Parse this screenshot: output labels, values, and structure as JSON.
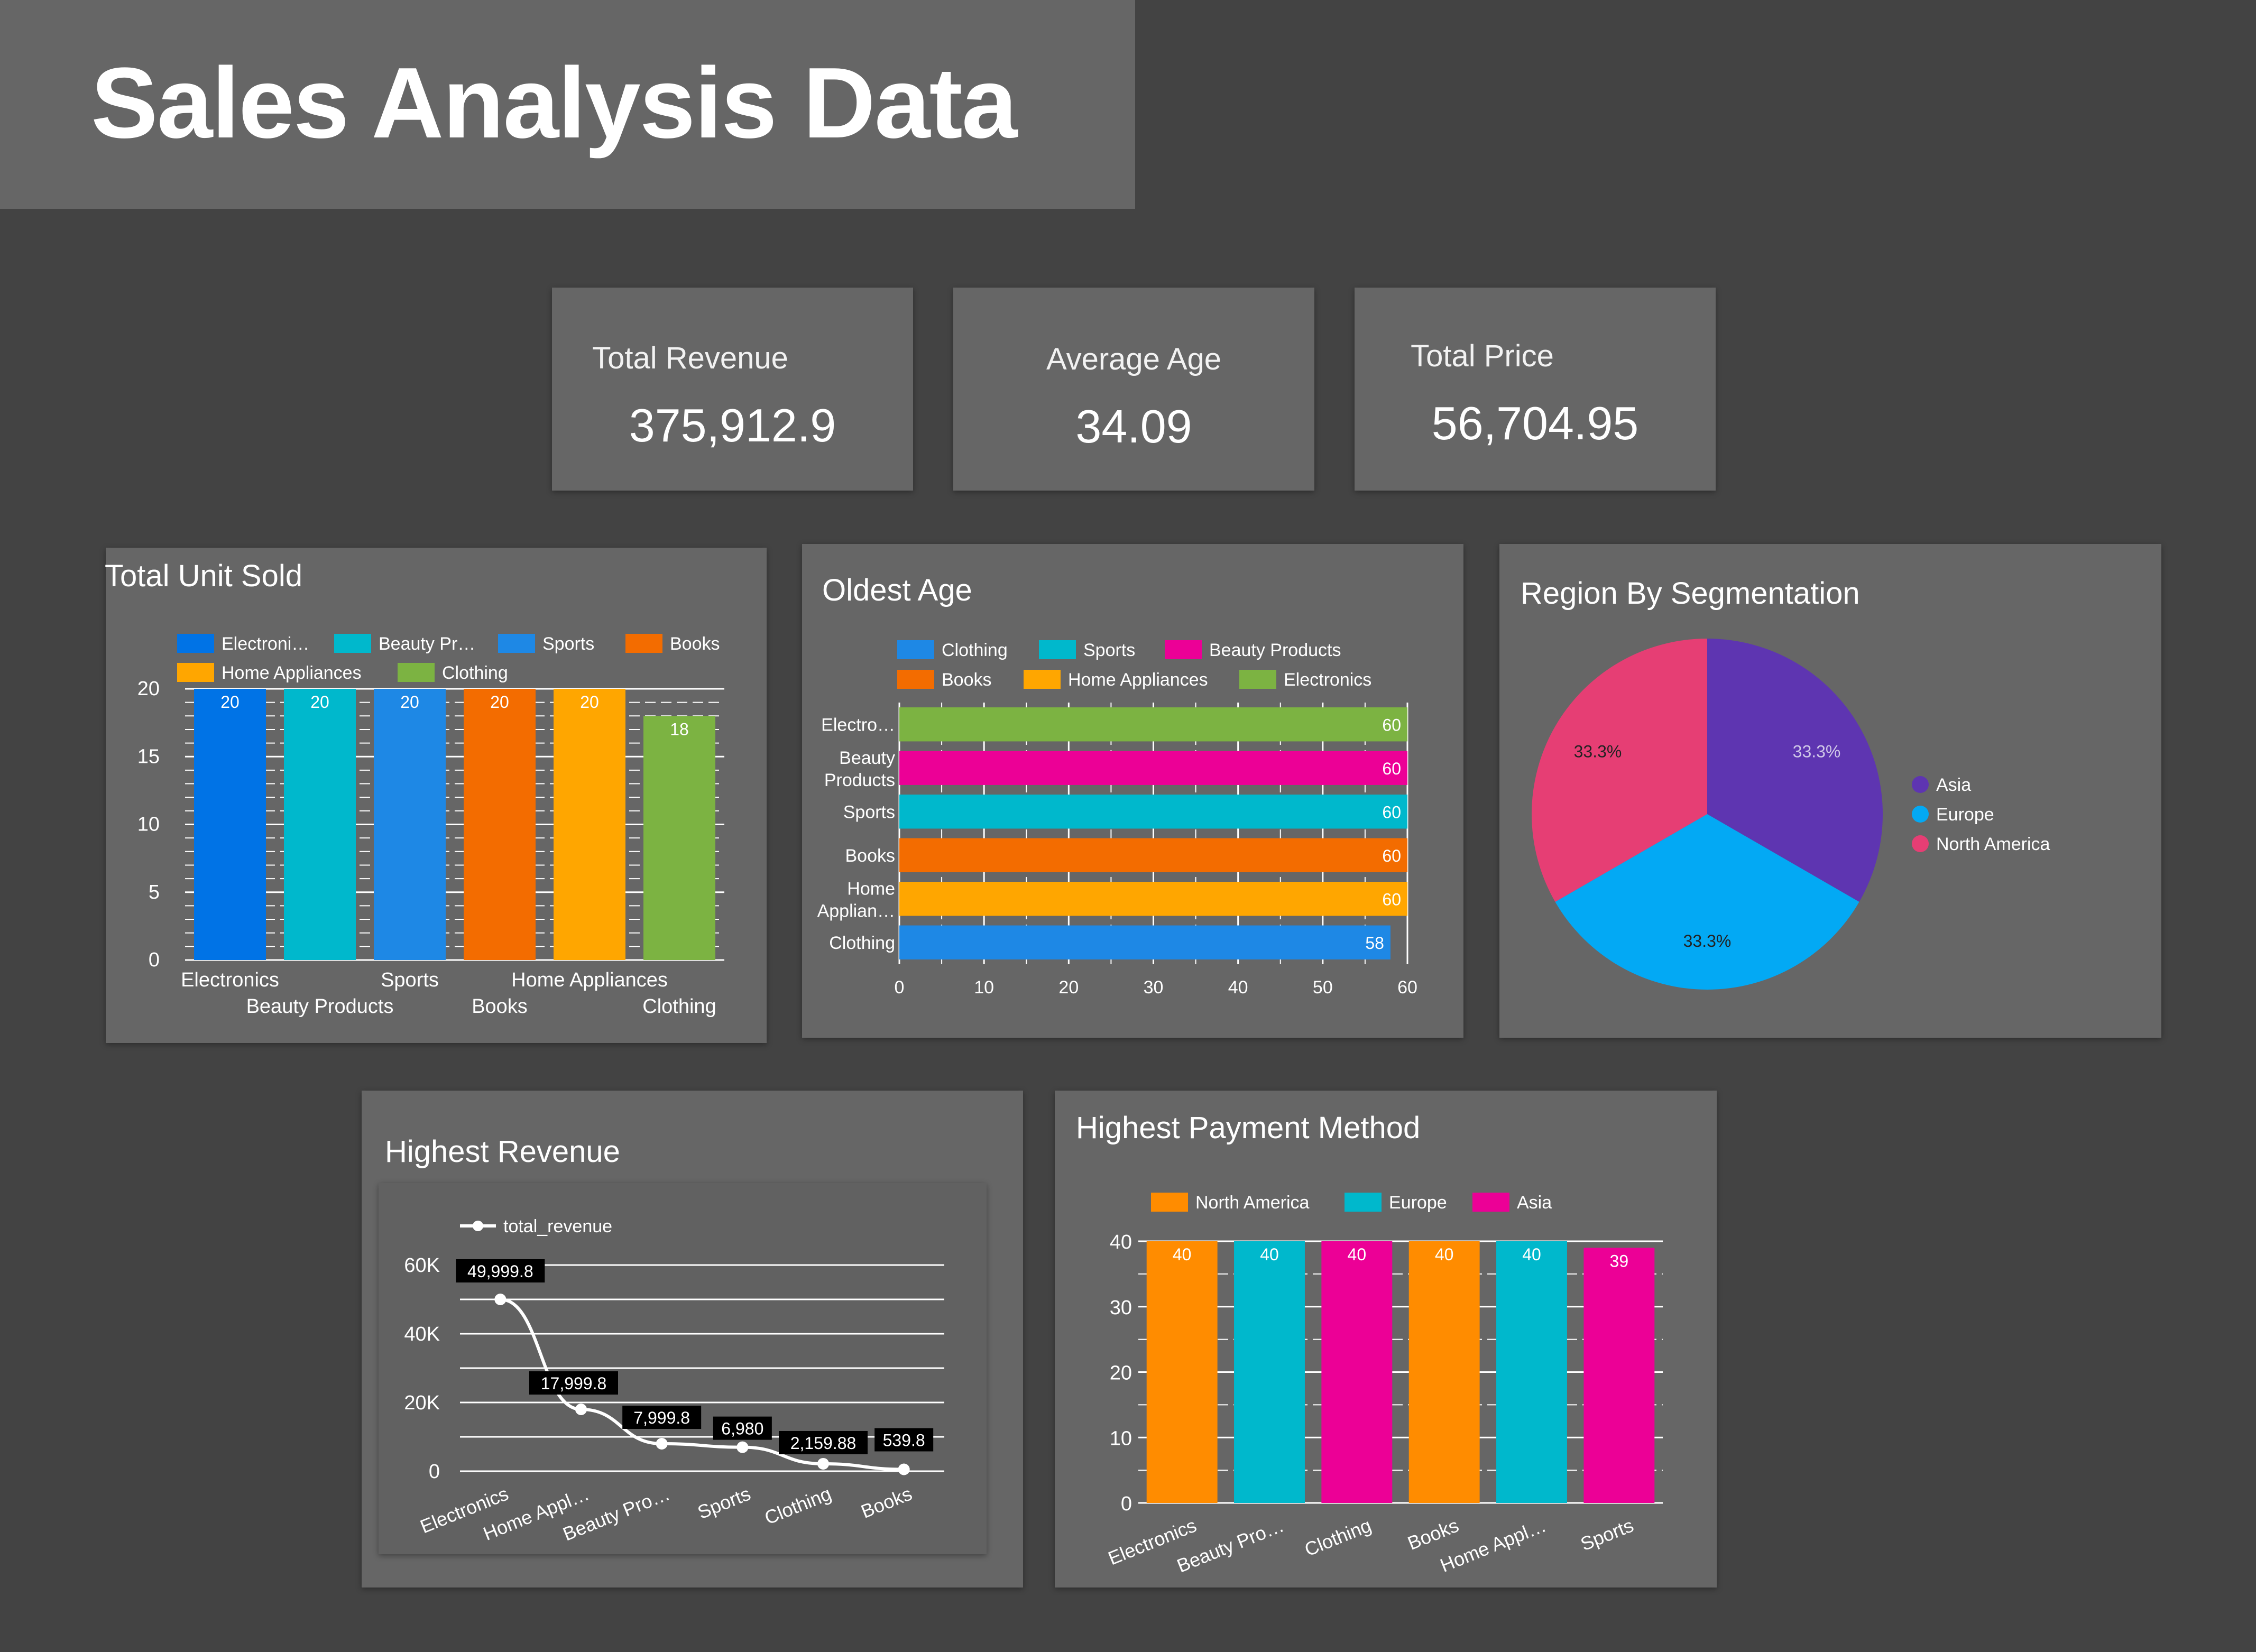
{
  "title": "Sales Analysis Data",
  "kpis": [
    {
      "label": "Total Revenue",
      "value": "375,912.9"
    },
    {
      "label": "Average Age",
      "value": "34.09"
    },
    {
      "label": "Total Price",
      "value": "56,704.95"
    }
  ],
  "colors": {
    "background": "#434343",
    "panel": "#666666",
    "electronics_blue": "#0073e6",
    "teal": "#00b8cc",
    "mid_blue": "#1e88e5",
    "orange": "#f36c00",
    "amber": "#ffa600",
    "green": "#7cb342",
    "magenta": "#ec0096",
    "purple": "#5e35b1",
    "sky": "#03a9f4",
    "pink": "#e63e74"
  },
  "chart_data": [
    {
      "id": "units",
      "type": "bar",
      "title": "Total Unit Sold",
      "categories": [
        "Electronics",
        "Beauty Products",
        "Sports",
        "Books",
        "Home Appliances",
        "Clothing"
      ],
      "values": [
        20,
        20,
        20,
        20,
        20,
        18
      ],
      "legend": [
        "Electroni…",
        "Beauty Pr…",
        "Sports",
        "Books",
        "Home Appliances",
        "Clothing"
      ],
      "colors": [
        "#0073e6",
        "#00b8cc",
        "#1e88e5",
        "#f36c00",
        "#ffa600",
        "#7cb342"
      ],
      "yticks": [
        0,
        5,
        10,
        15,
        20
      ],
      "ylim": [
        0,
        20
      ],
      "grid": true,
      "legend_position": "top"
    },
    {
      "id": "oldest",
      "type": "bar",
      "orientation": "horizontal",
      "title": "Oldest Age",
      "categories": [
        "Electronics",
        "Beauty Products",
        "Sports",
        "Books",
        "Home Appliances",
        "Clothing"
      ],
      "category_labels": [
        "Electro…",
        "Beauty Products",
        "Sports",
        "Books",
        "Home Applian…",
        "Clothing"
      ],
      "values": [
        60,
        60,
        60,
        60,
        60,
        58
      ],
      "colors": [
        "#7cb342",
        "#ec0096",
        "#00b8cc",
        "#f36c00",
        "#ffa600",
        "#1e88e5"
      ],
      "legend": [
        {
          "name": "Clothing",
          "color": "#1e88e5"
        },
        {
          "name": "Sports",
          "color": "#00b8cc"
        },
        {
          "name": "Beauty Products",
          "color": "#ec0096"
        },
        {
          "name": "Books",
          "color": "#f36c00"
        },
        {
          "name": "Home Appliances",
          "color": "#ffa600"
        },
        {
          "name": "Electronics",
          "color": "#7cb342"
        }
      ],
      "xticks": [
        0,
        10,
        20,
        30,
        40,
        50,
        60
      ],
      "xlim": [
        0,
        60
      ],
      "grid": true,
      "legend_position": "top"
    },
    {
      "id": "region",
      "type": "pie",
      "title": "Region By Segmentation",
      "labels": [
        "Asia",
        "Europe",
        "North America"
      ],
      "values": [
        33.3,
        33.3,
        33.3
      ],
      "value_labels": [
        "33.3%",
        "33.3%",
        "33.3%"
      ],
      "colors": [
        "#5e35b1",
        "#03a9f4",
        "#e63e74"
      ],
      "legend_position": "right"
    },
    {
      "id": "revenue",
      "type": "line",
      "title": "Highest Revenue",
      "series": [
        {
          "name": "total_revenue",
          "values": [
            49999.8,
            17999.8,
            7999.8,
            6980,
            2159.88,
            539.8
          ]
        }
      ],
      "categories": [
        "Electronics",
        "Home Appliances",
        "Beauty Products",
        "Sports",
        "Clothing",
        "Books"
      ],
      "category_labels": [
        "Electronics",
        "Home Appl…",
        "Beauty Pro…",
        "Sports",
        "Clothing",
        "Books"
      ],
      "value_labels": [
        "49,999.8",
        "17,999.8",
        "7,999.8",
        "6,980",
        "2,159.88",
        "539.8"
      ],
      "yticks": [
        0,
        20000,
        40000,
        60000
      ],
      "ytick_labels": [
        "0",
        "20K",
        "40K",
        "60K"
      ],
      "ylim": [
        0,
        60000
      ],
      "grid": true,
      "legend_position": "top-left"
    },
    {
      "id": "payment",
      "type": "bar",
      "title": "Highest Payment Method",
      "categories": [
        "Electronics",
        "Beauty Products",
        "Clothing",
        "Books",
        "Home Appliances",
        "Sports"
      ],
      "category_labels": [
        "Electronics",
        "Beauty Pro…",
        "Clothing",
        "Books",
        "Home Appl…",
        "Sports"
      ],
      "values": [
        40,
        40,
        40,
        40,
        40,
        39
      ],
      "colors": [
        "#ff8c00",
        "#00b8cc",
        "#ec0096",
        "#ff8c00",
        "#00b8cc",
        "#ec0096"
      ],
      "legend": [
        {
          "name": "North America",
          "color": "#ff8c00"
        },
        {
          "name": "Europe",
          "color": "#00b8cc"
        },
        {
          "name": "Asia",
          "color": "#ec0096"
        }
      ],
      "yticks": [
        0,
        10,
        20,
        30,
        40
      ],
      "ylim": [
        0,
        40
      ],
      "grid": true,
      "legend_position": "top"
    }
  ]
}
